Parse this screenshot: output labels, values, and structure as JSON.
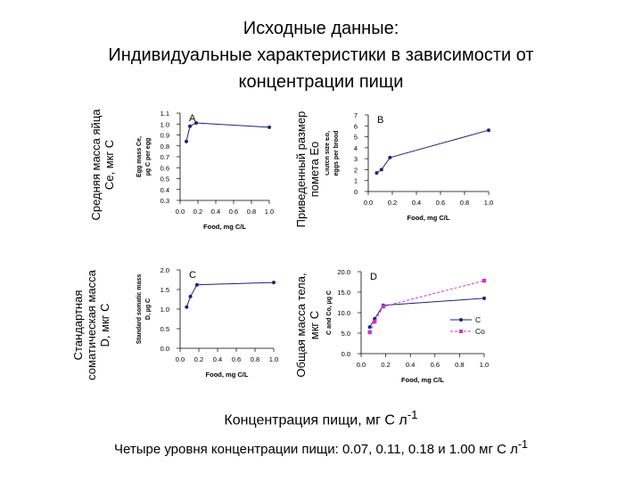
{
  "title": {
    "line1": "Исходные данные:",
    "line2": "Индивидуальные характеристики в зависимости от",
    "line3": "концентрации пищи"
  },
  "outer_labels": {
    "top_left": [
      "Средняя масса яйца",
      "Ce, мкг С"
    ],
    "bottom_left": [
      "Стандартная",
      "соматическая масса",
      "D, мкг С"
    ],
    "top_right": [
      "Приведенный размер",
      "помета Eo"
    ],
    "bottom_right": [
      "Общая масса тела,",
      "мкг С"
    ]
  },
  "caption": {
    "main": "Концентрация пищи, мг С л",
    "main_sup": "-1",
    "levels": "Четыре уровня концентрации пищи: 0.07, 0.11, 0.18 и 1.00 мг С л",
    "levels_sup": "-1"
  },
  "colors": {
    "line": "#1a237e",
    "marker": "#1a237e",
    "series2": "#cc33cc",
    "text": "#000000"
  },
  "chart_data": [
    {
      "id": "A",
      "type": "line",
      "panel_label": "A",
      "xlabel": "Food, mg C/L",
      "ylabel": [
        "Egg mass Ce,",
        "µg C per egg"
      ],
      "xlim": [
        0,
        1.0
      ],
      "ylim": [
        0.3,
        1.1
      ],
      "xticks": [
        "0.0",
        "0.2",
        "0.4",
        "0.6",
        "0.8",
        "1.0"
      ],
      "yticks": [
        "0.3",
        "0.4",
        "0.5",
        "0.6",
        "0.7",
        "0.8",
        "0.9",
        "1.0",
        "1.1"
      ],
      "series": [
        {
          "x": [
            0.07,
            0.11,
            0.18,
            1.0
          ],
          "y": [
            0.84,
            0.98,
            1.01,
            0.97
          ]
        }
      ]
    },
    {
      "id": "B",
      "type": "line",
      "panel_label": "B",
      "xlabel": "Food, mg C/L",
      "ylabel": [
        "Clutch size Eo,",
        "eggs per brood"
      ],
      "xlim": [
        0,
        1.0
      ],
      "ylim": [
        0,
        7
      ],
      "xticks": [
        "0.0",
        "0.2",
        "0.4",
        "0.6",
        "0.8",
        "1.0"
      ],
      "yticks": [
        "0",
        "1",
        "2",
        "3",
        "4",
        "5",
        "6",
        "7"
      ],
      "series": [
        {
          "x": [
            0.07,
            0.11,
            0.18,
            1.0
          ],
          "y": [
            1.7,
            2.0,
            3.1,
            5.6
          ]
        }
      ]
    },
    {
      "id": "C",
      "type": "line",
      "panel_label": "C",
      "xlabel": "Food, mg C/L",
      "ylabel": [
        "Standard somatic mass",
        "D, µg C"
      ],
      "xlim": [
        0,
        1.0
      ],
      "ylim": [
        0,
        2.0
      ],
      "xticks": [
        "0.0",
        "0.2",
        "0.4",
        "0.6",
        "0.8",
        "1.0"
      ],
      "yticks": [
        "0.0",
        "0.5",
        "1.0",
        "1.5",
        "2.0"
      ],
      "series": [
        {
          "x": [
            0.07,
            0.11,
            0.18,
            1.0
          ],
          "y": [
            1.05,
            1.32,
            1.62,
            1.68
          ]
        }
      ]
    },
    {
      "id": "D",
      "type": "line",
      "panel_label": "D",
      "xlabel": "Food, mg C/L",
      "ylabel": [
        "Total body mass",
        "C and Co, µg C"
      ],
      "xlim": [
        0,
        1.0
      ],
      "ylim": [
        0,
        20
      ],
      "xticks": [
        "0.0",
        "0.2",
        "0.4",
        "0.6",
        "0.8",
        "1.0"
      ],
      "yticks": [
        "0.0",
        "5.0",
        "10.0",
        "15.0",
        "20.0"
      ],
      "legend": "right",
      "series": [
        {
          "name": "C",
          "style": "solid",
          "x": [
            0.07,
            0.11,
            0.18,
            1.0
          ],
          "y": [
            6.5,
            8.5,
            11.8,
            13.5
          ]
        },
        {
          "name": "Co",
          "style": "dashed",
          "x": [
            0.07,
            0.11,
            0.18,
            1.0
          ],
          "y": [
            5.2,
            7.8,
            11.5,
            17.8
          ]
        }
      ]
    }
  ]
}
